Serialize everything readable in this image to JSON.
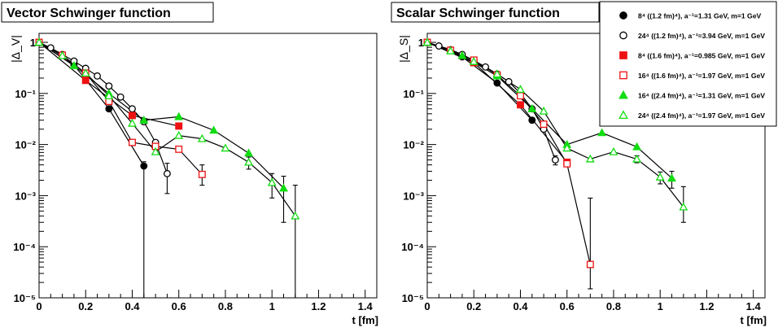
{
  "legend": {
    "placement": "top-right",
    "entries": [
      {
        "label": "8⁴ ((1.2 fm)⁴), a⁻¹=1.31 GeV, m=1 GeV",
        "marker": "circle",
        "filled": true,
        "color": "#000000"
      },
      {
        "label": "24⁴ ((1.2 fm)⁴), a⁻¹=3.94 GeV, m=1 GeV",
        "marker": "circle",
        "filled": false,
        "color": "#000000"
      },
      {
        "label": "8⁴ ((1.6 fm)⁴), a⁻¹=0.985 GeV, m=1 GeV",
        "marker": "square",
        "filled": true,
        "color": "#ee1111"
      },
      {
        "label": "16⁴ ((1.6 fm)⁴), a⁻¹=1.97 GeV, m=1 GeV",
        "marker": "square",
        "filled": false,
        "color": "#ee1111"
      },
      {
        "label": "16⁴ ((2.4 fm)⁴), a⁻¹=1.31 GeV, m=1 GeV",
        "marker": "triangle",
        "filled": true,
        "color": "#11dd11"
      },
      {
        "label": "24⁴ ((2.4 fm)⁴), a⁻¹=1.97 GeV, m=1 GeV",
        "marker": "triangle",
        "filled": false,
        "color": "#11dd11"
      }
    ]
  },
  "chart_data": [
    {
      "type": "scatter",
      "title": "Vector Schwinger function",
      "xlabel": "t [fm]",
      "ylabel": "|Δ_V|",
      "yscale": "log",
      "xlim": [
        0,
        1.45
      ],
      "ylim": [
        1e-05,
        1.5
      ],
      "grid": false,
      "x_ticks": [
        "0",
        "0.2",
        "0.4",
        "0.6",
        "0.8",
        "1",
        "1.2",
        "1.4"
      ],
      "y_ticks": [
        "1",
        "10⁻¹",
        "10⁻²",
        "10⁻³",
        "10⁻⁴",
        "10⁻⁵"
      ],
      "series": [
        {
          "x": [
            0,
            0.15,
            0.3,
            0.45
          ],
          "y": [
            1,
            0.36,
            0.05,
            0.0038
          ],
          "yerr_lo": [
            0,
            0,
            0,
            0.0038
          ],
          "yerr_hi": [
            0,
            0,
            0,
            0.0008
          ]
        },
        {
          "x": [
            0,
            0.05,
            0.1,
            0.15,
            0.2,
            0.25,
            0.3,
            0.35,
            0.4,
            0.45,
            0.5,
            0.55
          ],
          "y": [
            1,
            0.78,
            0.58,
            0.43,
            0.31,
            0.22,
            0.14,
            0.085,
            0.05,
            0.028,
            0.011,
            0.0027
          ],
          "yerr_lo": [
            0,
            0,
            0,
            0,
            0,
            0,
            0,
            0,
            0,
            0,
            0,
            0.0016
          ],
          "yerr_hi": [
            0,
            0,
            0,
            0,
            0,
            0,
            0,
            0,
            0,
            0,
            0,
            0.0016
          ]
        },
        {
          "x": [
            0,
            0.2,
            0.4,
            0.6
          ],
          "y": [
            1,
            0.18,
            0.037,
            0.023
          ],
          "yerr_lo": [
            0,
            0,
            0,
            0
          ],
          "yerr_hi": [
            0,
            0,
            0,
            0
          ]
        },
        {
          "x": [
            0,
            0.1,
            0.2,
            0.3,
            0.4,
            0.5,
            0.6,
            0.7
          ],
          "y": [
            1,
            0.56,
            0.25,
            0.07,
            0.011,
            0.0092,
            0.0081,
            0.0026
          ],
          "yerr_lo": [
            0,
            0,
            0,
            0,
            0,
            0,
            0,
            0.001
          ],
          "yerr_hi": [
            0,
            0,
            0,
            0,
            0,
            0,
            0,
            0.0014
          ]
        },
        {
          "x": [
            0,
            0.15,
            0.3,
            0.45,
            0.6,
            0.75,
            0.9,
            1.05
          ],
          "y": [
            1,
            0.35,
            0.1,
            0.03,
            0.035,
            0.019,
            0.0068,
            0.0014
          ],
          "yerr_lo": [
            0,
            0,
            0,
            0,
            0,
            0,
            0,
            0.0011
          ],
          "yerr_hi": [
            0,
            0,
            0,
            0,
            0,
            0,
            0,
            0.001
          ]
        },
        {
          "x": [
            0,
            0.1,
            0.2,
            0.3,
            0.4,
            0.5,
            0.6,
            0.7,
            0.8,
            0.9,
            1,
            1.1
          ],
          "y": [
            1,
            0.55,
            0.25,
            0.09,
            0.026,
            0.0072,
            0.015,
            0.013,
            0.0085,
            0.0045,
            0.0018,
            0.0004
          ],
          "yerr_lo": [
            0,
            0,
            0,
            0,
            0,
            0,
            0,
            0,
            0,
            0.0012,
            0.0009,
            0.0004
          ],
          "yerr_hi": [
            0,
            0,
            0,
            0,
            0,
            0,
            0,
            0,
            0,
            0.0012,
            0.0009,
            0.0012
          ]
        }
      ]
    },
    {
      "type": "scatter",
      "title": "Scalar Schwinger function",
      "xlabel": "t [fm]",
      "ylabel": "|Δ_S|",
      "yscale": "log",
      "xlim": [
        0,
        1.45
      ],
      "ylim": [
        1e-05,
        1.5
      ],
      "grid": false,
      "x_ticks": [
        "0",
        "0.2",
        "0.4",
        "0.6",
        "0.8",
        "1",
        "1.2",
        "1.4"
      ],
      "y_ticks": [
        "1",
        "10⁻¹",
        "10⁻²",
        "10⁻³",
        "10⁻⁴",
        "10⁻⁵"
      ],
      "series": [
        {
          "x": [
            0,
            0.15,
            0.3,
            0.45
          ],
          "y": [
            1,
            0.52,
            0.16,
            0.03
          ],
          "yerr_lo": [
            0,
            0,
            0,
            0
          ],
          "yerr_hi": [
            0,
            0,
            0,
            0
          ]
        },
        {
          "x": [
            0,
            0.05,
            0.1,
            0.15,
            0.2,
            0.25,
            0.3,
            0.35,
            0.4,
            0.45,
            0.5,
            0.55
          ],
          "y": [
            1,
            0.85,
            0.72,
            0.58,
            0.44,
            0.33,
            0.24,
            0.17,
            0.1,
            0.05,
            0.02,
            0.005
          ],
          "yerr_lo": [
            0,
            0,
            0,
            0,
            0,
            0,
            0,
            0,
            0,
            0,
            0,
            0.001
          ],
          "yerr_hi": [
            0,
            0,
            0,
            0,
            0,
            0,
            0,
            0,
            0,
            0,
            0,
            0.001
          ]
        },
        {
          "x": [
            0,
            0.2,
            0.4,
            0.6
          ],
          "y": [
            1,
            0.4,
            0.06,
            0.0045
          ],
          "yerr_lo": [
            0,
            0,
            0,
            0
          ],
          "yerr_hi": [
            0,
            0,
            0,
            0
          ]
        },
        {
          "x": [
            0,
            0.1,
            0.2,
            0.3,
            0.4,
            0.5,
            0.6,
            0.7
          ],
          "y": [
            1,
            0.7,
            0.45,
            0.23,
            0.09,
            0.025,
            0.0042,
            4.5e-05
          ],
          "yerr_lo": [
            0,
            0,
            0,
            0,
            0,
            0,
            0,
            3e-05
          ],
          "yerr_hi": [
            0,
            0,
            0,
            0,
            0,
            0,
            0,
            0.00085
          ]
        },
        {
          "x": [
            0,
            0.15,
            0.3,
            0.45,
            0.6,
            0.75,
            0.9,
            1.05
          ],
          "y": [
            1,
            0.55,
            0.22,
            0.05,
            0.01,
            0.017,
            0.009,
            0.0022
          ],
          "yerr_lo": [
            0,
            0,
            0,
            0,
            0,
            0,
            0,
            0.0008
          ],
          "yerr_hi": [
            0,
            0,
            0,
            0,
            0,
            0,
            0,
            0.0008
          ]
        },
        {
          "x": [
            0,
            0.1,
            0.2,
            0.3,
            0.4,
            0.5,
            0.6,
            0.7,
            0.8,
            0.9,
            1,
            1.1
          ],
          "y": [
            1,
            0.68,
            0.42,
            0.24,
            0.12,
            0.045,
            0.0085,
            0.0052,
            0.0072,
            0.0052,
            0.0023,
            0.0006
          ],
          "yerr_lo": [
            0,
            0,
            0,
            0,
            0,
            0,
            0,
            0,
            0,
            0.0008,
            0.0006,
            0.0003
          ],
          "yerr_hi": [
            0,
            0,
            0,
            0,
            0,
            0,
            0,
            0,
            0,
            0.0008,
            0.0006,
            0.0009
          ]
        }
      ]
    }
  ]
}
